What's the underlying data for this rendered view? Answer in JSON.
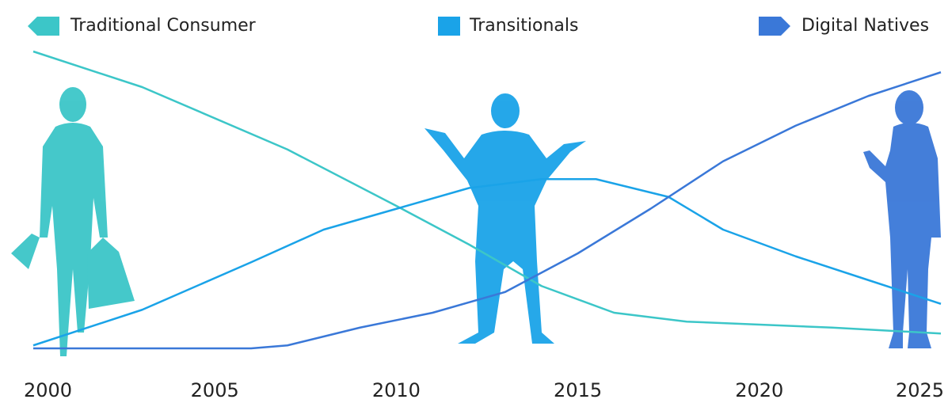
{
  "chart_data": {
    "type": "line",
    "series": [
      {
        "name": "Traditional Consumer",
        "color": "#3cc6c8",
        "x": [
          2000,
          2003,
          2007,
          2010,
          2012,
          2014,
          2016,
          2018,
          2022,
          2025
        ],
        "values": [
          100,
          88,
          67,
          48,
          35,
          21,
          12,
          9,
          7,
          5
        ]
      },
      {
        "name": "Transitionals",
        "color": "#1aa3e8",
        "x": [
          2000,
          2003,
          2006,
          2008,
          2010,
          2012,
          2014,
          2015.5,
          2017.5,
          2019,
          2021,
          2023,
          2025
        ],
        "values": [
          1,
          13,
          29,
          40,
          47,
          54,
          57,
          57,
          51,
          40,
          31,
          23,
          15
        ]
      },
      {
        "name": "Digital Natives",
        "color": "#3a78d8",
        "x": [
          2000,
          2006,
          2007,
          2009,
          2011,
          2013,
          2015,
          2017,
          2019,
          2021,
          2023,
          2025
        ],
        "values": [
          0,
          0,
          1,
          7,
          12,
          19,
          32,
          47,
          63,
          75,
          85,
          93
        ]
      }
    ],
    "xlim": [
      2000,
      2025
    ],
    "xticks": [
      2000,
      2005,
      2010,
      2015,
      2020,
      2025
    ],
    "ylim": [
      0,
      100
    ]
  }
}
